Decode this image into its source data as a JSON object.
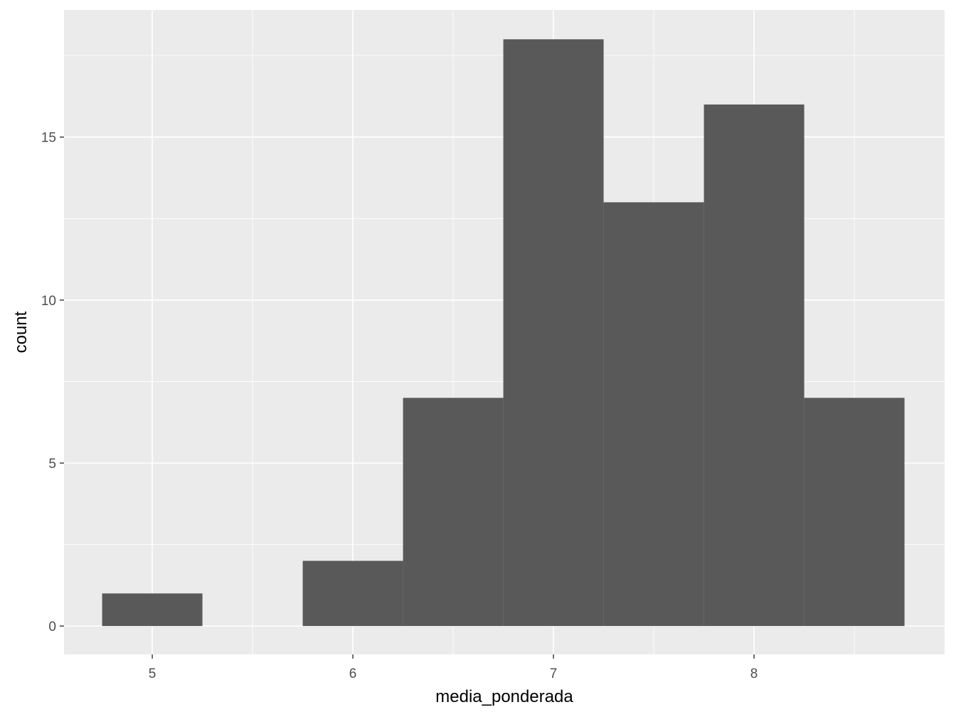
{
  "chart_data": {
    "type": "bar",
    "subtype": "histogram",
    "bin_width": 0.5,
    "bin_centers": [
      5,
      5.5,
      6,
      6.5,
      7,
      7.5,
      8,
      8.5
    ],
    "values": [
      1,
      0,
      2,
      7,
      18,
      13,
      16,
      7
    ],
    "xlabel": "media_ponderada",
    "ylabel": "count",
    "xlim": [
      4.56,
      8.95
    ],
    "ylim": [
      -0.87,
      18.9
    ],
    "x_ticks": [
      5,
      6,
      7,
      8
    ],
    "x_tick_labels": [
      "5",
      "6",
      "7",
      "8"
    ],
    "y_ticks": [
      0,
      5,
      10,
      15
    ],
    "y_tick_labels": [
      "0",
      "5",
      "10",
      "15"
    ],
    "grid": true,
    "colors": {
      "panel": "#EBEBEB",
      "bar": "#595959",
      "grid": "#FFFFFF",
      "tick_text": "#4D4D4D"
    }
  }
}
